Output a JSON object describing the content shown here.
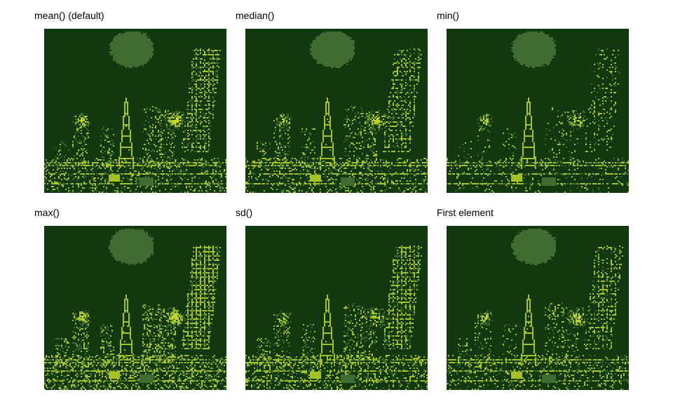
{
  "panels": [
    {
      "title": "mean() (default)",
      "variant": "mean"
    },
    {
      "title": "median()",
      "variant": "median"
    },
    {
      "title": "min()",
      "variant": "min"
    },
    {
      "title": "max()",
      "variant": "max"
    },
    {
      "title": "sd()",
      "variant": "sd"
    },
    {
      "title": "First element",
      "variant": "first"
    }
  ],
  "palette": {
    "background": "#12380f",
    "mid": "#3f6d31",
    "highlight": "#a6c223",
    "bright": "#c9d824"
  }
}
